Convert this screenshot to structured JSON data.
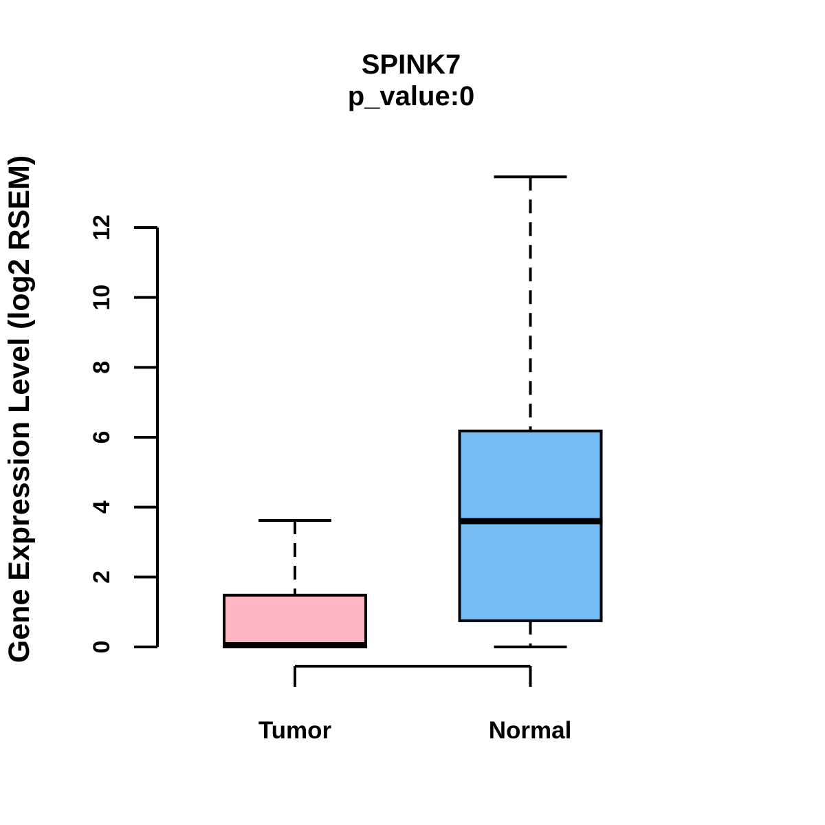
{
  "chart_data": {
    "type": "boxplot",
    "title": "SPINK7",
    "subtitle": "p_value:0",
    "ylabel": "Gene Expression Level (log2 RSEM)",
    "xlabel": "",
    "ylim": [
      0,
      12
    ],
    "yticks": [
      0,
      2,
      4,
      6,
      8,
      10,
      12
    ],
    "grid": false,
    "legend": null,
    "background_color": "#ffffff",
    "axis_color": "#000000",
    "groups": [
      {
        "label": "Tumor",
        "box_color": "#ffb6c1",
        "border_color": "#000000",
        "whisker_low": 0,
        "q1": 0,
        "median": 0.05,
        "q3": 1.48,
        "whisker_high": 3.62
      },
      {
        "label": "Normal",
        "box_color": "#74bef5",
        "border_color": "#000000",
        "whisker_low": 0,
        "q1": 0.75,
        "median": 3.6,
        "q3": 6.18,
        "whisker_high": 13.45
      }
    ]
  }
}
